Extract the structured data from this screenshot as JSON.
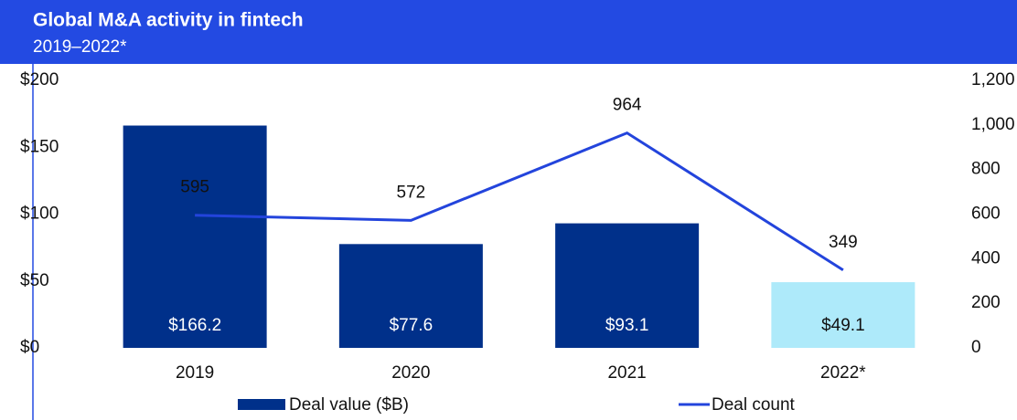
{
  "chart_data": {
    "type": "bar-line",
    "title": "Global M&A activity in fintech",
    "subtitle": "2019–2022*",
    "categories": [
      "2019",
      "2020",
      "2021",
      "2022*"
    ],
    "series": [
      {
        "name": "Deal value ($B)",
        "color": "#00308a",
        "colors": [
          "#00308a",
          "#00308a",
          "#00308a",
          "#aeeafa"
        ],
        "values": [
          166.2,
          77.6,
          93.1,
          49.1
        ],
        "value_labels": [
          "$166.2",
          "$77.6",
          "$93.1",
          "$49.1"
        ]
      },
      {
        "name": "Deal count",
        "color": "#2344dc",
        "axis": "y2",
        "values": [
          595,
          572,
          964,
          349
        ]
      }
    ],
    "ylim": [
      0,
      200
    ],
    "yticks": [
      {
        "value": 0,
        "label": "$0"
      },
      {
        "value": 50,
        "label": "$50"
      },
      {
        "value": 100,
        "label": "$100"
      },
      {
        "value": 150,
        "label": "$150"
      },
      {
        "value": 200,
        "label": "$200"
      }
    ],
    "y2lim": [
      0,
      1200
    ],
    "y2ticks": [
      0,
      200,
      400,
      600,
      800,
      {
        "value": 1000,
        "label": "1,000"
      },
      {
        "value": 1200,
        "label": "1,200"
      }
    ]
  }
}
